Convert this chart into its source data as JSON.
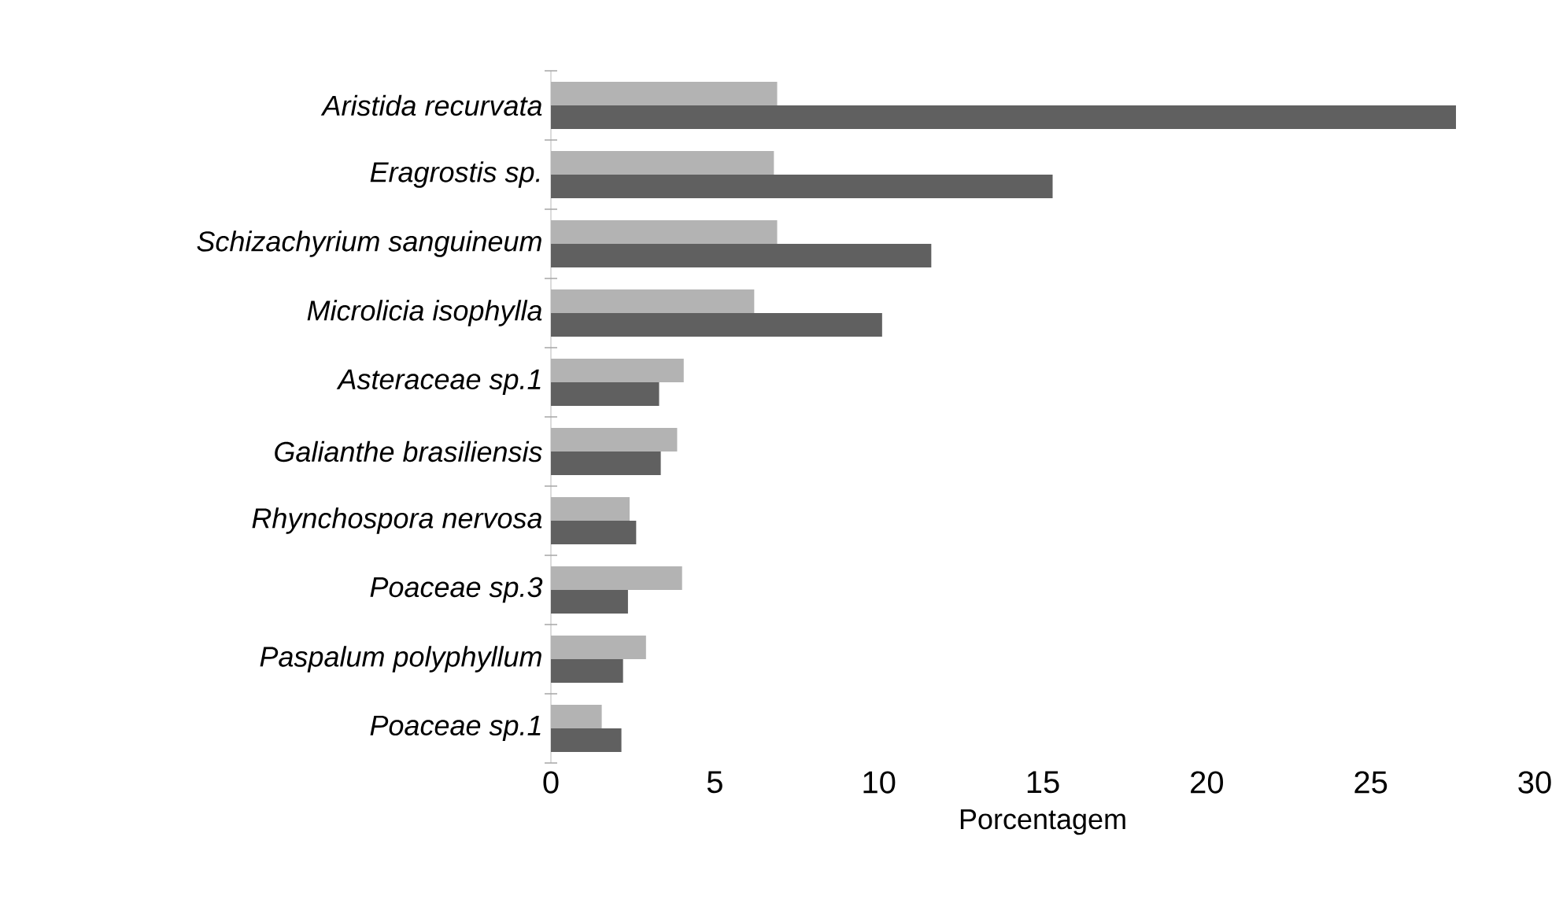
{
  "chart_data": {
    "type": "bar",
    "orientation": "horizontal",
    "xlabel": "Porcentagem",
    "categories": [
      "Aristida recurvata",
      "Eragrostis sp.",
      "Schizachyrium sanguineum",
      "Microlicia isophylla",
      "Asteraceae sp.1",
      "Galianthe brasiliensis",
      "Rhynchospora nervosa",
      "Poaceae sp.3",
      "Paspalum polyphyllum",
      "Poaceae sp.1"
    ],
    "series": [
      {
        "color": "#b3b3b3",
        "values": [
          6.9,
          6.8,
          6.9,
          6.2,
          4.05,
          3.85,
          2.4,
          4.0,
          2.9,
          1.55
        ]
      },
      {
        "color": "#606060",
        "values": [
          27.6,
          15.3,
          11.6,
          10.1,
          3.3,
          3.35,
          2.6,
          2.35,
          2.2,
          2.15
        ]
      }
    ],
    "xlim": [
      0,
      30
    ],
    "xticks": [
      0,
      5,
      10,
      15,
      20,
      25,
      30
    ]
  }
}
